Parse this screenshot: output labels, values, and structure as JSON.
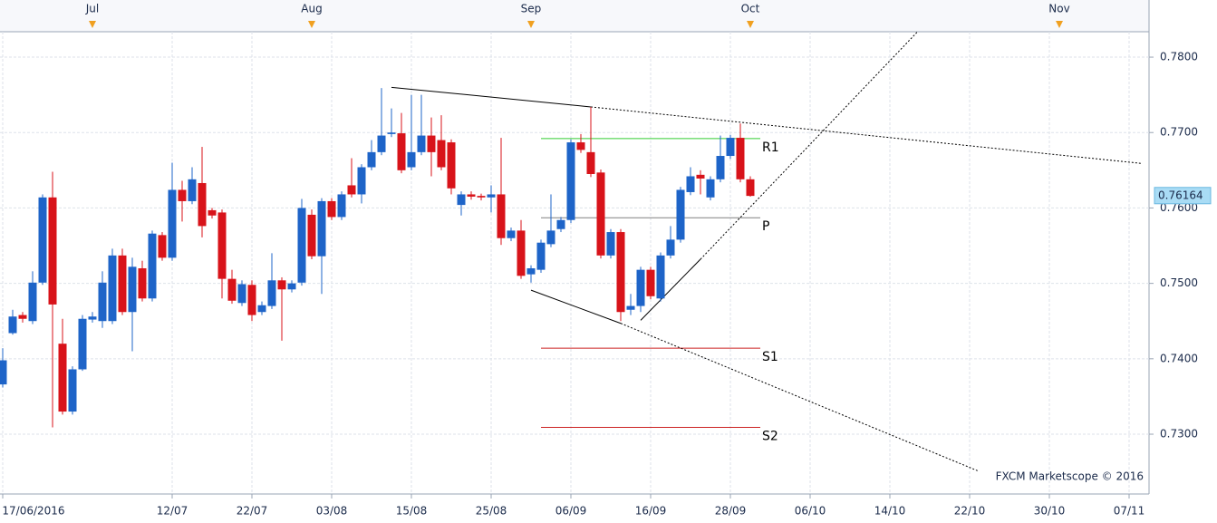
{
  "chart_data": {
    "type": "candlestick",
    "watermark": "FXCM Marketscope © 2016",
    "xlim": [
      -0.2727,
      115
    ],
    "ylim": [
      0.72207,
      0.78337
    ],
    "yticks": [
      {
        "value": 0.73,
        "label": "0.7300"
      },
      {
        "value": 0.74,
        "label": "0.7400"
      },
      {
        "value": 0.75,
        "label": "0.7500"
      },
      {
        "value": 0.76,
        "label": "0.7600"
      },
      {
        "value": 0.77,
        "label": "0.7700"
      },
      {
        "value": 0.78,
        "label": "0.7800"
      }
    ],
    "xticks": [
      {
        "value": 0,
        "label": "17/06/2016"
      },
      {
        "value": 17,
        "label": "12/07"
      },
      {
        "value": 25,
        "label": "22/07"
      },
      {
        "value": 33,
        "label": "03/08"
      },
      {
        "value": 41,
        "label": "15/08"
      },
      {
        "value": 49,
        "label": "25/08"
      },
      {
        "value": 57,
        "label": "06/09"
      },
      {
        "value": 65,
        "label": "16/09"
      },
      {
        "value": 73,
        "label": "28/09"
      },
      {
        "value": 81,
        "label": "06/10"
      },
      {
        "value": 89,
        "label": "14/10"
      },
      {
        "value": 97,
        "label": "22/10"
      },
      {
        "value": 105,
        "label": "30/10"
      },
      {
        "value": 113,
        "label": "07/11"
      }
    ],
    "month_ticks": [
      {
        "value": 9,
        "label": "Jul"
      },
      {
        "value": 31,
        "label": "Aug"
      },
      {
        "value": 53,
        "label": "Sep"
      },
      {
        "value": 75,
        "label": "Oct"
      },
      {
        "value": 106,
        "label": "Nov"
      }
    ],
    "grid": true,
    "up_color": "#1e64c8",
    "down_color": "#d8131a",
    "x": [
      0,
      1,
      2,
      3,
      4,
      5,
      6,
      7,
      8,
      9,
      10,
      11,
      12,
      13,
      14,
      15,
      16,
      17,
      18,
      19,
      20,
      21,
      22,
      23,
      24,
      25,
      26,
      27,
      28,
      29,
      30,
      31,
      32,
      33,
      34,
      35,
      36,
      37,
      38,
      39,
      40,
      41,
      42,
      43,
      44,
      45,
      46,
      47,
      48,
      49,
      50,
      51,
      52,
      53,
      54,
      55,
      56,
      57,
      58,
      59,
      60,
      61,
      62,
      63,
      64,
      65,
      66,
      67,
      68,
      69,
      70,
      71,
      72,
      73,
      74,
      75
    ],
    "open": [
      0.7366,
      0.7434,
      0.7458,
      0.745,
      0.7501,
      0.7614,
      0.742,
      0.733,
      0.7386,
      0.7452,
      0.745,
      0.745,
      0.7537,
      0.7462,
      0.752,
      0.748,
      0.7564,
      0.7534,
      0.7624,
      0.7609,
      0.7633,
      0.7597,
      0.7594,
      0.7506,
      0.7474,
      0.7498,
      0.7462,
      0.747,
      0.7504,
      0.7492,
      0.7501,
      0.7591,
      0.7536,
      0.7609,
      0.7588,
      0.763,
      0.7618,
      0.7654,
      0.7674,
      0.7698,
      0.7699,
      0.7654,
      0.7674,
      0.7696,
      0.769,
      0.7687,
      0.7604,
      0.7618,
      0.7616,
      0.7614,
      0.7618,
      0.756,
      0.757,
      0.7512,
      0.7518,
      0.7552,
      0.7572,
      0.7584,
      0.7687,
      0.7674,
      0.7647,
      0.7537,
      0.7568,
      0.7465,
      0.747,
      0.7518,
      0.748,
      0.7537,
      0.7558,
      0.7621,
      0.7644,
      0.7614,
      0.7638,
      0.7669,
      0.7693,
      0.7638
    ],
    "high": [
      0.7414,
      0.7465,
      0.7462,
      0.7516,
      0.7618,
      0.7648,
      0.7453,
      0.739,
      0.7458,
      0.7462,
      0.7516,
      0.7546,
      0.7546,
      0.7534,
      0.753,
      0.757,
      0.7568,
      0.766,
      0.7636,
      0.7654,
      0.7681,
      0.76,
      0.7598,
      0.7518,
      0.7504,
      0.7504,
      0.7476,
      0.754,
      0.7508,
      0.7504,
      0.7612,
      0.7598,
      0.7613,
      0.7613,
      0.7622,
      0.7666,
      0.7658,
      0.769,
      0.7759,
      0.7732,
      0.7726,
      0.775,
      0.775,
      0.772,
      0.7723,
      0.7691,
      0.7622,
      0.7622,
      0.7619,
      0.763,
      0.7693,
      0.7574,
      0.7584,
      0.7524,
      0.7558,
      0.7618,
      0.7588,
      0.7691,
      0.7698,
      0.7734,
      0.7651,
      0.7572,
      0.7572,
      0.7486,
      0.7522,
      0.7522,
      0.7541,
      0.7576,
      0.7628,
      0.7654,
      0.765,
      0.7642,
      0.7696,
      0.7697,
      0.7712,
      0.7642
    ],
    "low": [
      0.7362,
      0.7432,
      0.7448,
      0.7446,
      0.7498,
      0.7309,
      0.7326,
      0.7326,
      0.7384,
      0.7448,
      0.7441,
      0.7446,
      0.7458,
      0.741,
      0.7476,
      0.7476,
      0.753,
      0.753,
      0.7582,
      0.7605,
      0.7561,
      0.7586,
      0.748,
      0.7473,
      0.747,
      0.745,
      0.7458,
      0.7466,
      0.7424,
      0.7488,
      0.7497,
      0.7532,
      0.7486,
      0.7584,
      0.7584,
      0.7614,
      0.7606,
      0.765,
      0.767,
      0.7694,
      0.7646,
      0.765,
      0.767,
      0.7642,
      0.765,
      0.7618,
      0.759,
      0.7611,
      0.761,
      0.7594,
      0.7551,
      0.7556,
      0.7506,
      0.7501,
      0.7514,
      0.7548,
      0.7568,
      0.758,
      0.7673,
      0.7641,
      0.7533,
      0.7533,
      0.745,
      0.7458,
      0.7462,
      0.7479,
      0.7476,
      0.7533,
      0.7554,
      0.7617,
      0.7618,
      0.761,
      0.7634,
      0.7665,
      0.7634,
      0.7615
    ],
    "close": [
      0.7398,
      0.7456,
      0.7453,
      0.7501,
      0.7614,
      0.7472,
      0.733,
      0.7386,
      0.7453,
      0.7456,
      0.7501,
      0.7537,
      0.7462,
      0.7522,
      0.748,
      0.7566,
      0.7534,
      0.7624,
      0.7609,
      0.7638,
      0.7576,
      0.759,
      0.7506,
      0.7477,
      0.7499,
      0.7458,
      0.7471,
      0.7504,
      0.7492,
      0.75,
      0.76,
      0.7536,
      0.7609,
      0.7588,
      0.7618,
      0.7618,
      0.7654,
      0.7674,
      0.7696,
      0.77,
      0.765,
      0.7674,
      0.7696,
      0.7674,
      0.7654,
      0.7626,
      0.7618,
      0.7615,
      0.7614,
      0.7618,
      0.756,
      0.757,
      0.751,
      0.752,
      0.7554,
      0.757,
      0.7584,
      0.7687,
      0.7677,
      0.7645,
      0.7537,
      0.7568,
      0.7462,
      0.747,
      0.7518,
      0.7483,
      0.7537,
      0.7558,
      0.7624,
      0.7642,
      0.7639,
      0.7638,
      0.7669,
      0.7693,
      0.7638,
      0.7616
    ],
    "last_price": 0.76164,
    "pivot_range": [
      54,
      76
    ],
    "pivots": [
      {
        "label": "R1",
        "value": 0.7692,
        "color": "#33cc33"
      },
      {
        "label": "P",
        "value": 0.7587,
        "color": "#808080"
      },
      {
        "label": "S1",
        "value": 0.7414,
        "color": "#cc2222"
      },
      {
        "label": "S2",
        "value": 0.7309,
        "color": "#cc2222"
      }
    ],
    "trendlines": [
      {
        "x": [
          39,
          59,
          114.3
        ],
        "y": [
          0.776,
          0.7734,
          0.7659
        ]
      },
      {
        "x": [
          53,
          62,
          97.9
        ],
        "y": [
          0.7491,
          0.7447,
          0.7251
        ]
      },
      {
        "x": [
          64,
          70,
          91.8
        ],
        "y": [
          0.7451,
          0.7532,
          0.7834
        ]
      }
    ]
  }
}
